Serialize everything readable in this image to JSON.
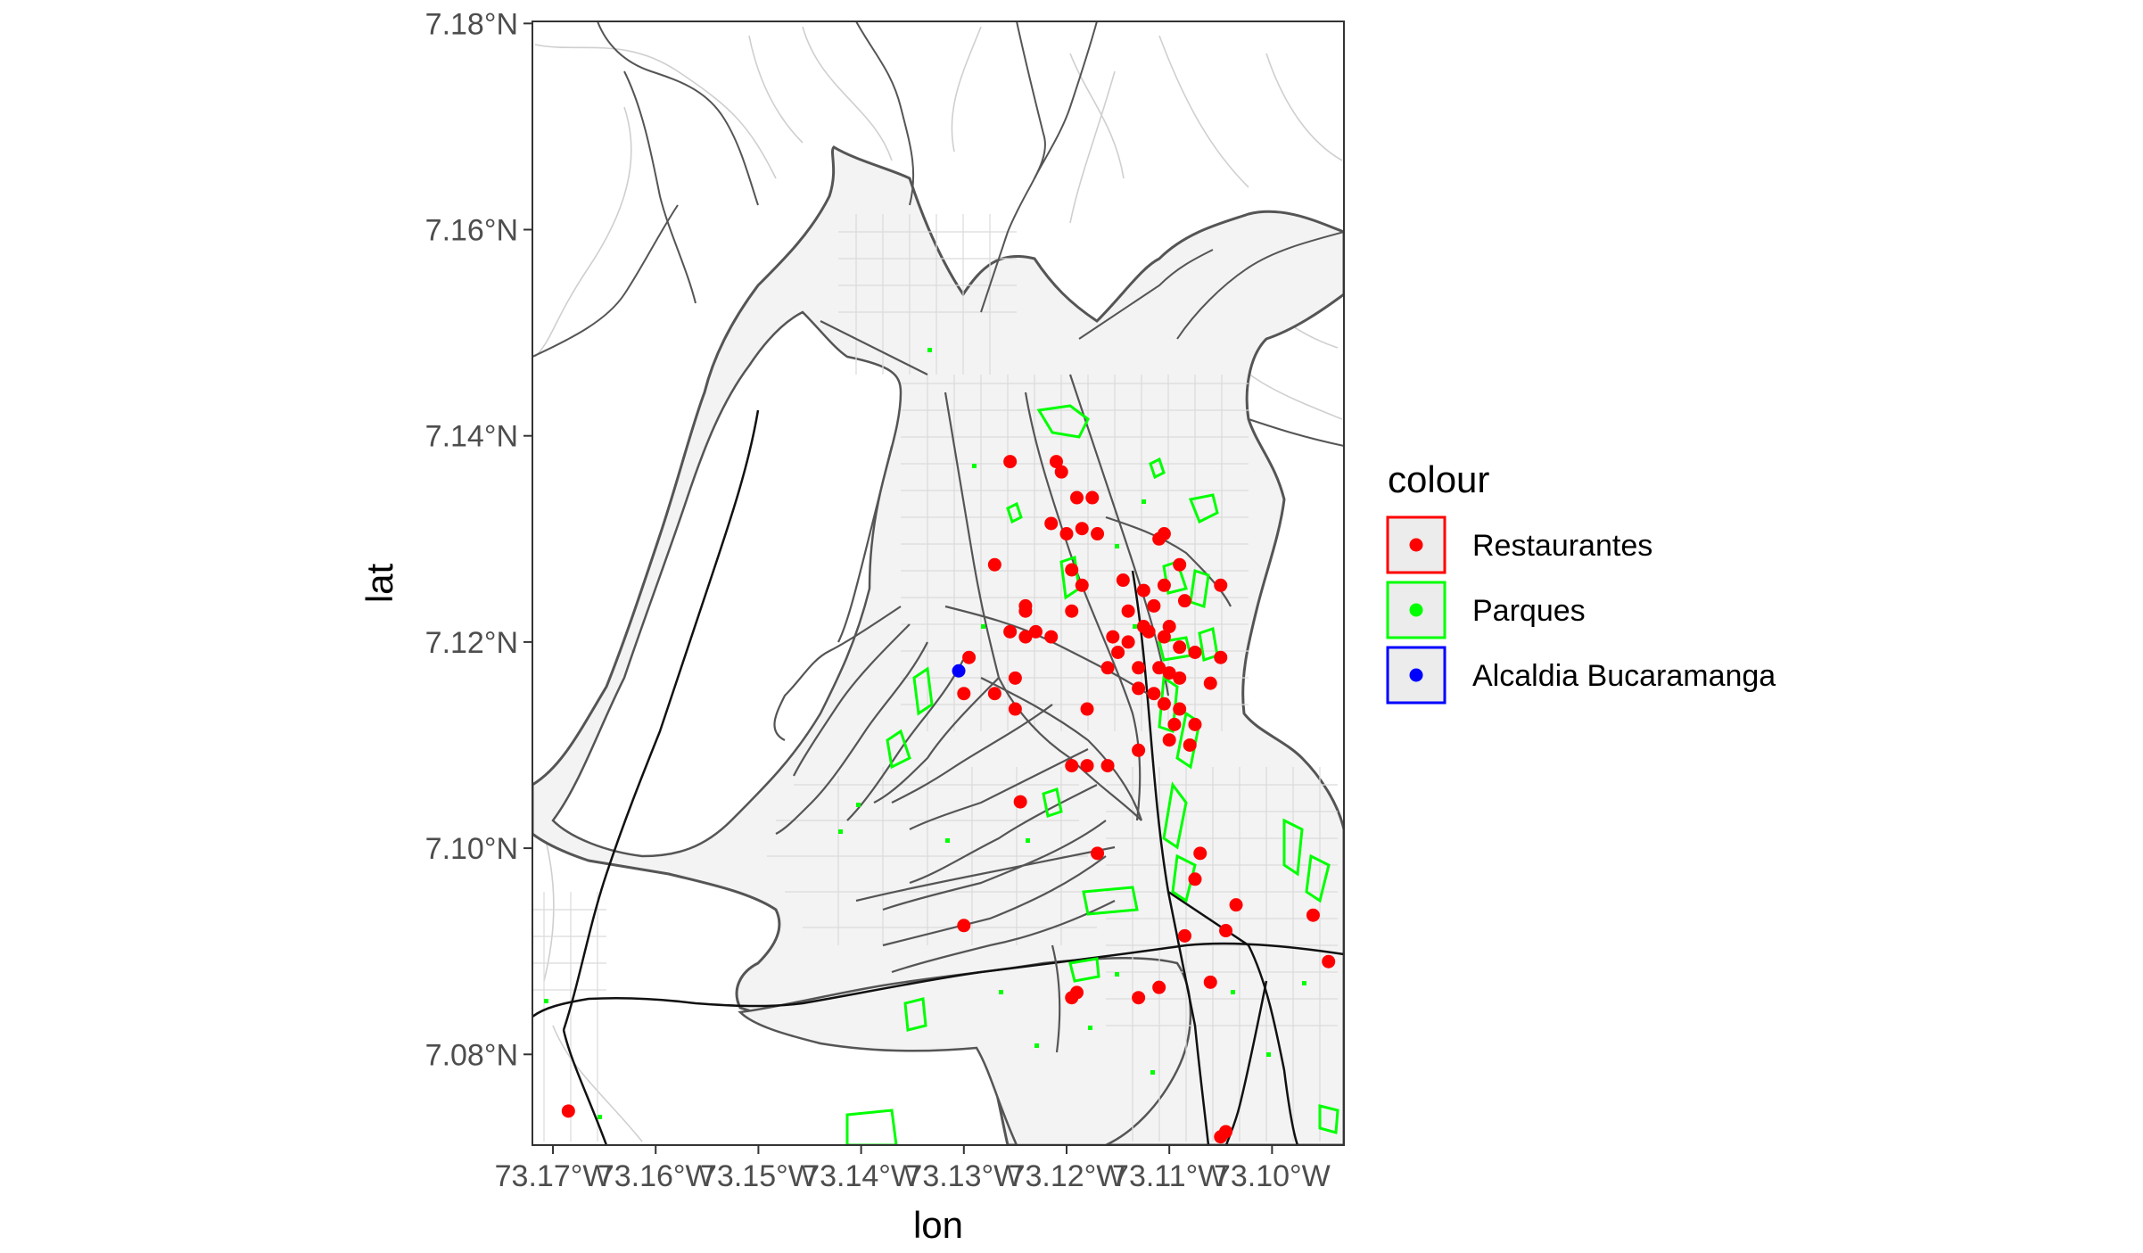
{
  "chart_data": {
    "type": "scatter",
    "title": "",
    "xlabel": "lon",
    "ylabel": "lat",
    "xlim": [
      -73.172,
      -73.093
    ],
    "ylim": [
      7.0712,
      7.1802
    ],
    "x_ticks": [
      {
        "value": -73.17,
        "label": "73.17°W"
      },
      {
        "value": -73.16,
        "label": "73.16°W"
      },
      {
        "value": -73.15,
        "label": "73.15°W"
      },
      {
        "value": -73.14,
        "label": "73.14°W"
      },
      {
        "value": -73.13,
        "label": "73.13°W"
      },
      {
        "value": -73.12,
        "label": "73.12°W"
      },
      {
        "value": -73.11,
        "label": "73.11°W"
      },
      {
        "value": -73.1,
        "label": "73.10°W"
      }
    ],
    "y_ticks": [
      {
        "value": 7.08,
        "label": "7.08°N"
      },
      {
        "value": 7.1,
        "label": "7.10°N"
      },
      {
        "value": 7.12,
        "label": "7.12°N"
      },
      {
        "value": 7.14,
        "label": "7.14°N"
      },
      {
        "value": 7.16,
        "label": "7.16°N"
      },
      {
        "value": 7.18,
        "label": "7.18°N"
      }
    ],
    "legend": {
      "title": "colour",
      "position": "right",
      "entries": [
        {
          "label": "Restaurantes",
          "color": "#ff0000"
        },
        {
          "label": "Parques",
          "color": "#00ff00"
        },
        {
          "label": "Alcaldia Bucaramanga",
          "color": "#0000ff"
        }
      ]
    },
    "colors": {
      "restaurantes": "#ff0000",
      "parques": "#00ff00",
      "alcaldia": "#0000ff",
      "urban_fill": "#f3f3f3",
      "boundary": "#555555",
      "roads": "#111111",
      "streets": "#dadada"
    },
    "grid": false,
    "series": [
      {
        "name": "Restaurantes",
        "points": [
          [
            -73.1255,
            7.1375
          ],
          [
            -73.121,
            7.1375
          ],
          [
            -73.1205,
            7.1365
          ],
          [
            -73.119,
            7.134
          ],
          [
            -73.1175,
            7.134
          ],
          [
            -73.1215,
            7.1315
          ],
          [
            -73.12,
            7.1305
          ],
          [
            -73.1185,
            7.131
          ],
          [
            -73.117,
            7.1305
          ],
          [
            -73.111,
            7.13
          ],
          [
            -73.1105,
            7.1305
          ],
          [
            -73.127,
            7.1275
          ],
          [
            -73.1195,
            7.127
          ],
          [
            -73.1185,
            7.1255
          ],
          [
            -73.1145,
            7.126
          ],
          [
            -73.109,
            7.1275
          ],
          [
            -73.1125,
            7.125
          ],
          [
            -73.1105,
            7.1255
          ],
          [
            -73.105,
            7.1255
          ],
          [
            -73.124,
            7.1235
          ],
          [
            -73.124,
            7.123
          ],
          [
            -73.1195,
            7.123
          ],
          [
            -73.114,
            7.123
          ],
          [
            -73.1115,
            7.1235
          ],
          [
            -73.1085,
            7.124
          ],
          [
            -73.1125,
            7.1215
          ],
          [
            -73.11,
            7.1215
          ],
          [
            -73.1255,
            7.121
          ],
          [
            -73.124,
            7.1205
          ],
          [
            -73.123,
            7.121
          ],
          [
            -73.1215,
            7.1205
          ],
          [
            -73.1155,
            7.1205
          ],
          [
            -73.114,
            7.12
          ],
          [
            -73.112,
            7.121
          ],
          [
            -73.1105,
            7.1205
          ],
          [
            -73.109,
            7.1195
          ],
          [
            -73.115,
            7.119
          ],
          [
            -73.1075,
            7.119
          ],
          [
            -73.105,
            7.1185
          ],
          [
            -73.113,
            7.1175
          ],
          [
            -73.111,
            7.1175
          ],
          [
            -73.11,
            7.117
          ],
          [
            -73.109,
            7.1165
          ],
          [
            -73.116,
            7.1175
          ],
          [
            -73.125,
            7.1165
          ],
          [
            -73.106,
            7.116
          ],
          [
            -73.113,
            7.1155
          ],
          [
            -73.1115,
            7.115
          ],
          [
            -73.1105,
            7.114
          ],
          [
            -73.1295,
            7.1185
          ],
          [
            -73.13,
            7.115
          ],
          [
            -73.127,
            7.115
          ],
          [
            -73.125,
            7.1135
          ],
          [
            -73.118,
            7.1135
          ],
          [
            -73.109,
            7.1135
          ],
          [
            -73.1075,
            7.112
          ],
          [
            -73.1095,
            7.112
          ],
          [
            -73.11,
            7.1105
          ],
          [
            -73.108,
            7.11
          ],
          [
            -73.113,
            7.1095
          ],
          [
            -73.118,
            7.108
          ],
          [
            -73.1195,
            7.108
          ],
          [
            -73.116,
            7.108
          ],
          [
            -73.1245,
            7.1045
          ],
          [
            -73.117,
            7.0995
          ],
          [
            -73.107,
            7.0995
          ],
          [
            -73.1075,
            7.097
          ],
          [
            -73.1035,
            7.0945
          ],
          [
            -73.1045,
            7.092
          ],
          [
            -73.1085,
            7.0915
          ],
          [
            -73.13,
            7.0925
          ],
          [
            -73.096,
            7.0935
          ],
          [
            -73.0945,
            7.089
          ],
          [
            -73.119,
            7.086
          ],
          [
            -73.1195,
            7.0855
          ],
          [
            -73.111,
            7.0865
          ],
          [
            -73.113,
            7.0855
          ],
          [
            -73.106,
            7.087
          ],
          [
            -73.1685,
            7.0745
          ],
          [
            -73.1045,
            7.0725
          ],
          [
            -73.105,
            7.072
          ]
        ]
      },
      {
        "name": "Alcaldia Bucaramanga",
        "points": [
          [
            -73.1305,
            7.1172
          ]
        ]
      }
    ]
  }
}
